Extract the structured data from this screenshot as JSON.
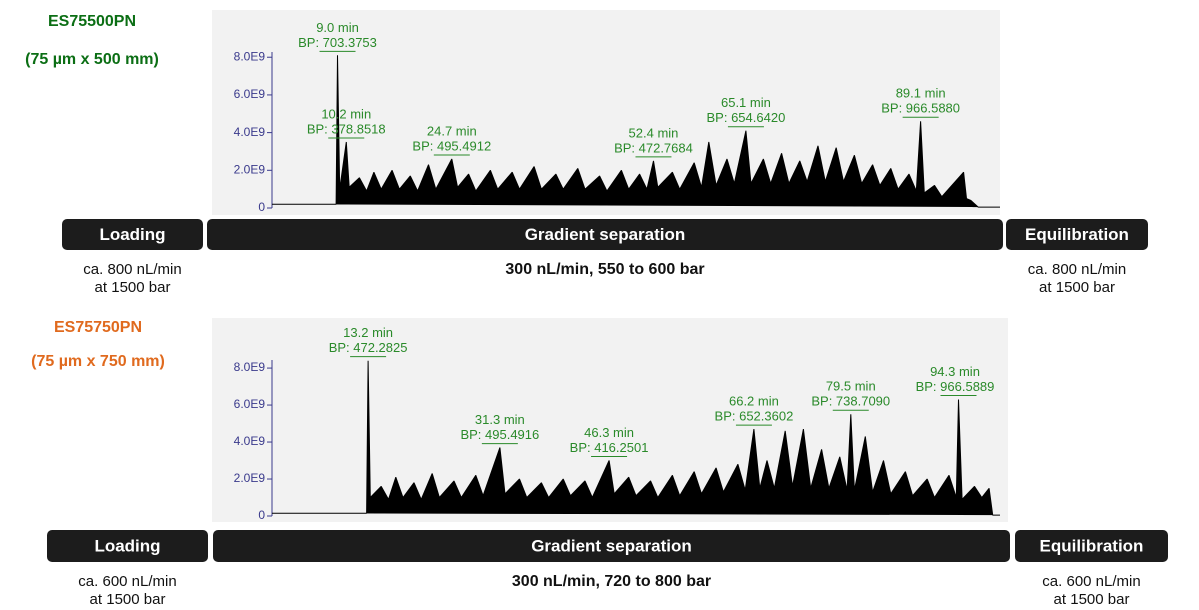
{
  "chart_data": [
    {
      "type": "line",
      "title": "ES75500PN",
      "subtitle": "(75 µm x 500 mm)",
      "title_color": "#0b6e14",
      "xlim": [
        0,
        100
      ],
      "ylim": [
        0,
        10400000000
      ],
      "yticks": [
        0,
        {
          "value": 2000000000,
          "label": "2.0E9"
        },
        {
          "value": 4000000000,
          "label": "4.0E9"
        },
        {
          "value": 6000000000,
          "label": "6.0E9"
        },
        {
          "value": 8000000000,
          "label": "8.0E9"
        }
      ],
      "series": [
        {
          "color": "#000000",
          "x": [
            0,
            8.8,
            9.0,
            9.3,
            10.2,
            10.6,
            12,
            13,
            14,
            15,
            16.5,
            17.5,
            19,
            20,
            21.5,
            22.5,
            24.7,
            25.5,
            27,
            28,
            30,
            31,
            33,
            34,
            36,
            37,
            39,
            40,
            42,
            43,
            45,
            46,
            48,
            49,
            50.5,
            51.5,
            52.4,
            53,
            55,
            56,
            58,
            59,
            60,
            61,
            62.5,
            63.5,
            65.1,
            65.8,
            67.5,
            68.5,
            70,
            71,
            72.5,
            73.5,
            75,
            76,
            77.5,
            78.5,
            80,
            81,
            82.5,
            83.5,
            85,
            86,
            87.5,
            88.5,
            89.1,
            89.6,
            91,
            92,
            95,
            95.4,
            96,
            97,
            100
          ],
          "values": [
            200000000.0,
            200000000.0,
            8100000000.0,
            1000000000.0,
            3500000000.0,
            1100000000.0,
            1600000000.0,
            900000000.0,
            1900000000.0,
            1000000000.0,
            2000000000.0,
            1000000000.0,
            1700000000.0,
            900000000.0,
            2300000000.0,
            1000000000.0,
            2600000000.0,
            1100000000.0,
            1800000000.0,
            900000000.0,
            2000000000.0,
            1000000000.0,
            1900000000.0,
            1000000000.0,
            2200000000.0,
            1000000000.0,
            1800000000.0,
            1000000000.0,
            2100000000.0,
            1000000000.0,
            1700000000.0,
            900000000.0,
            2000000000.0,
            1000000000.0,
            1800000000.0,
            1000000000.0,
            2500000000.0,
            1100000000.0,
            1900000000.0,
            1000000000.0,
            2400000000.0,
            1100000000.0,
            3500000000.0,
            1200000000.0,
            2600000000.0,
            1300000000.0,
            4100000000.0,
            1300000000.0,
            2600000000.0,
            1300000000.0,
            2900000000.0,
            1300000000.0,
            2500000000.0,
            1400000000.0,
            3300000000.0,
            1400000000.0,
            3200000000.0,
            1400000000.0,
            2800000000.0,
            1300000000.0,
            2300000000.0,
            1200000000.0,
            2100000000.0,
            1000000000.0,
            1800000000.0,
            900000000.0,
            4600000000.0,
            800000000.0,
            1200000000.0,
            600000000.0,
            1900000000.0,
            500000000.0,
            400000000.0,
            50000000.0,
            50000000.0
          ]
        }
      ],
      "annotations": [
        {
          "x": 9.0,
          "lines": [
            "9.0 min",
            "BP: 703.3753"
          ]
        },
        {
          "x": 10.2,
          "lines": [
            "10.2 min",
            "BP: 378.8518"
          ]
        },
        {
          "x": 24.7,
          "lines": [
            "24.7 min",
            "BP: 495.4912"
          ]
        },
        {
          "x": 52.4,
          "lines": [
            "52.4 min",
            "BP: 472.7684"
          ]
        },
        {
          "x": 65.1,
          "lines": [
            "65.1 min",
            "BP: 654.6420"
          ]
        },
        {
          "x": 89.1,
          "lines": [
            "89.1 min",
            "BP: 966.5880"
          ]
        }
      ],
      "phases": [
        {
          "label": "Loading",
          "note": [
            "ca. 800 nL/min",
            "at 1500 bar"
          ]
        },
        {
          "label": "Gradient separation",
          "note": [
            "300 nL/min, 550 to 600 bar"
          ]
        },
        {
          "label": "Equilibration",
          "note": [
            "ca. 800 nL/min",
            "at 1500 bar"
          ]
        }
      ]
    },
    {
      "type": "line",
      "title": "ES75750PN",
      "subtitle": "(75 µm x 750 mm)",
      "title_color": "#e06a1e",
      "xlim": [
        0,
        100
      ],
      "ylim": [
        0,
        10600000000
      ],
      "yticks": [
        0,
        {
          "value": 2000000000,
          "label": "2.0E9"
        },
        {
          "value": 4000000000,
          "label": "4.0E9"
        },
        {
          "value": 6000000000,
          "label": "6.0E9"
        },
        {
          "value": 8000000000,
          "label": "8.0E9"
        }
      ],
      "series": [
        {
          "color": "#000000",
          "x": [
            0,
            13.0,
            13.2,
            13.5,
            15,
            16,
            17,
            18,
            19.5,
            20.5,
            22,
            23,
            25,
            26,
            28,
            29,
            31.3,
            32,
            34,
            35,
            37,
            38,
            40,
            41,
            43,
            44,
            46.3,
            47,
            49,
            50,
            52,
            53,
            55,
            56,
            58,
            59,
            61,
            62,
            64,
            65,
            66.2,
            67,
            68,
            69,
            70.5,
            71.5,
            73,
            74,
            75.5,
            76.5,
            78,
            79,
            79.5,
            80,
            81.5,
            82.5,
            84,
            85,
            87,
            88,
            90,
            91,
            93,
            94,
            94.3,
            94.8,
            96.5,
            97.5,
            98.5,
            99,
            100
          ],
          "values": [
            150000000.0,
            150000000.0,
            8400000000.0,
            1000000000.0,
            1600000000.0,
            900000000.0,
            2100000000.0,
            1000000000.0,
            1800000000.0,
            900000000.0,
            2300000000.0,
            1000000000.0,
            1900000000.0,
            1000000000.0,
            2200000000.0,
            1100000000.0,
            3700000000.0,
            1200000000.0,
            2000000000.0,
            1000000000.0,
            1800000000.0,
            1000000000.0,
            2000000000.0,
            1100000000.0,
            1900000000.0,
            1000000000.0,
            3000000000.0,
            1200000000.0,
            2100000000.0,
            1100000000.0,
            1900000000.0,
            1000000000.0,
            2200000000.0,
            1100000000.0,
            2400000000.0,
            1200000000.0,
            2600000000.0,
            1300000000.0,
            2800000000.0,
            1400000000.0,
            4700000000.0,
            1500000000.0,
            3000000000.0,
            1500000000.0,
            4600000000.0,
            1600000000.0,
            4700000000.0,
            1500000000.0,
            3600000000.0,
            1500000000.0,
            3200000000.0,
            1400000000.0,
            5500000000.0,
            1400000000.0,
            4300000000.0,
            1300000000.0,
            3000000000.0,
            1200000000.0,
            2400000000.0,
            1100000000.0,
            2000000000.0,
            1000000000.0,
            2200000000.0,
            1000000000.0,
            6300000000.0,
            900000000.0,
            1600000000.0,
            1000000000.0,
            1500000000.0,
            50000000.0,
            50000000.0
          ]
        }
      ],
      "annotations": [
        {
          "x": 13.2,
          "lines": [
            "13.2 min",
            "BP: 472.2825"
          ]
        },
        {
          "x": 31.3,
          "lines": [
            "31.3 min",
            "BP: 495.4916"
          ]
        },
        {
          "x": 46.3,
          "lines": [
            "46.3 min",
            "BP: 416.2501"
          ]
        },
        {
          "x": 66.2,
          "lines": [
            "66.2 min",
            "BP: 652.3602"
          ]
        },
        {
          "x": 79.5,
          "lines": [
            "79.5 min",
            "BP: 738.7090"
          ]
        },
        {
          "x": 94.3,
          "lines": [
            "94.3 min",
            "BP: 966.5889"
          ]
        }
      ],
      "phases": [
        {
          "label": "Loading",
          "note": [
            "ca. 600 nL/min",
            "at 1500 bar"
          ]
        },
        {
          "label": "Gradient separation",
          "note": [
            "300 nL/min, 720 to 800 bar"
          ]
        },
        {
          "label": "Equilibration",
          "note": [
            "ca. 600 nL/min",
            "at 1500 bar"
          ]
        }
      ]
    }
  ]
}
